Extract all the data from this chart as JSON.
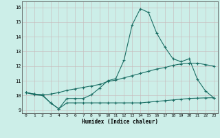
{
  "x": [
    0,
    1,
    2,
    3,
    4,
    5,
    6,
    7,
    8,
    9,
    10,
    11,
    12,
    13,
    14,
    15,
    16,
    17,
    18,
    19,
    20,
    21,
    22,
    23
  ],
  "y_max": [
    10.2,
    10.05,
    10.0,
    9.5,
    9.1,
    9.8,
    9.8,
    9.8,
    10.05,
    10.5,
    11.0,
    11.15,
    12.4,
    14.8,
    15.9,
    15.65,
    14.25,
    13.3,
    12.5,
    12.3,
    12.5,
    11.1,
    10.3,
    9.85
  ],
  "y_mean": [
    10.2,
    10.1,
    10.05,
    10.1,
    10.2,
    10.35,
    10.45,
    10.55,
    10.65,
    10.75,
    10.95,
    11.05,
    11.2,
    11.35,
    11.5,
    11.65,
    11.8,
    11.9,
    12.05,
    12.15,
    12.2,
    12.2,
    12.1,
    12.0
  ],
  "y_min": [
    10.2,
    10.1,
    10.05,
    9.5,
    9.1,
    9.5,
    9.5,
    9.5,
    9.5,
    9.5,
    9.5,
    9.5,
    9.5,
    9.5,
    9.5,
    9.55,
    9.6,
    9.65,
    9.7,
    9.75,
    9.8,
    9.82,
    9.84,
    9.85
  ],
  "bg_color": "#cceee8",
  "grid_color_major": "#c8b8b8",
  "grid_color_minor": "#ddd0d0",
  "line_color": "#1a6e64",
  "xlabel": "Humidex (Indice chaleur)",
  "ylim": [
    8.8,
    16.4
  ],
  "xlim": [
    -0.5,
    23.5
  ],
  "yticks": [
    9,
    10,
    11,
    12,
    13,
    14,
    15,
    16
  ],
  "xticks": [
    0,
    1,
    2,
    3,
    4,
    5,
    6,
    7,
    8,
    9,
    10,
    11,
    12,
    13,
    14,
    15,
    16,
    17,
    18,
    19,
    20,
    21,
    22,
    23
  ]
}
